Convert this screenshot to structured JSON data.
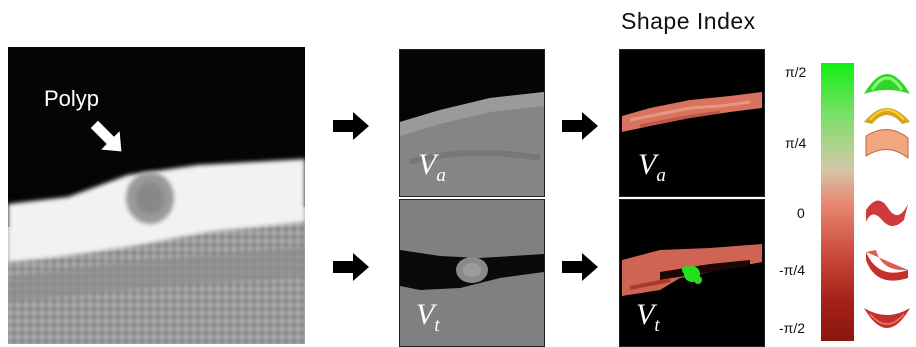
{
  "title": "Shape Index",
  "polyp_label": "Polyp",
  "labels": {
    "va_base": "V",
    "va_sub": "a",
    "vt_base": "V",
    "vt_sub": "t"
  },
  "colorbar": {
    "ticks": [
      "π/2",
      "π/4",
      "0",
      "-π/4",
      "-π/2"
    ],
    "top_color": "#10f010",
    "mid_color": "#e98a74",
    "bottom_color": "#8b1510"
  },
  "shape_icons": [
    "cap-icon",
    "ridge-icon",
    "saddle-ridge-icon",
    "saddle-icon",
    "rut-icon",
    "cup-icon"
  ]
}
